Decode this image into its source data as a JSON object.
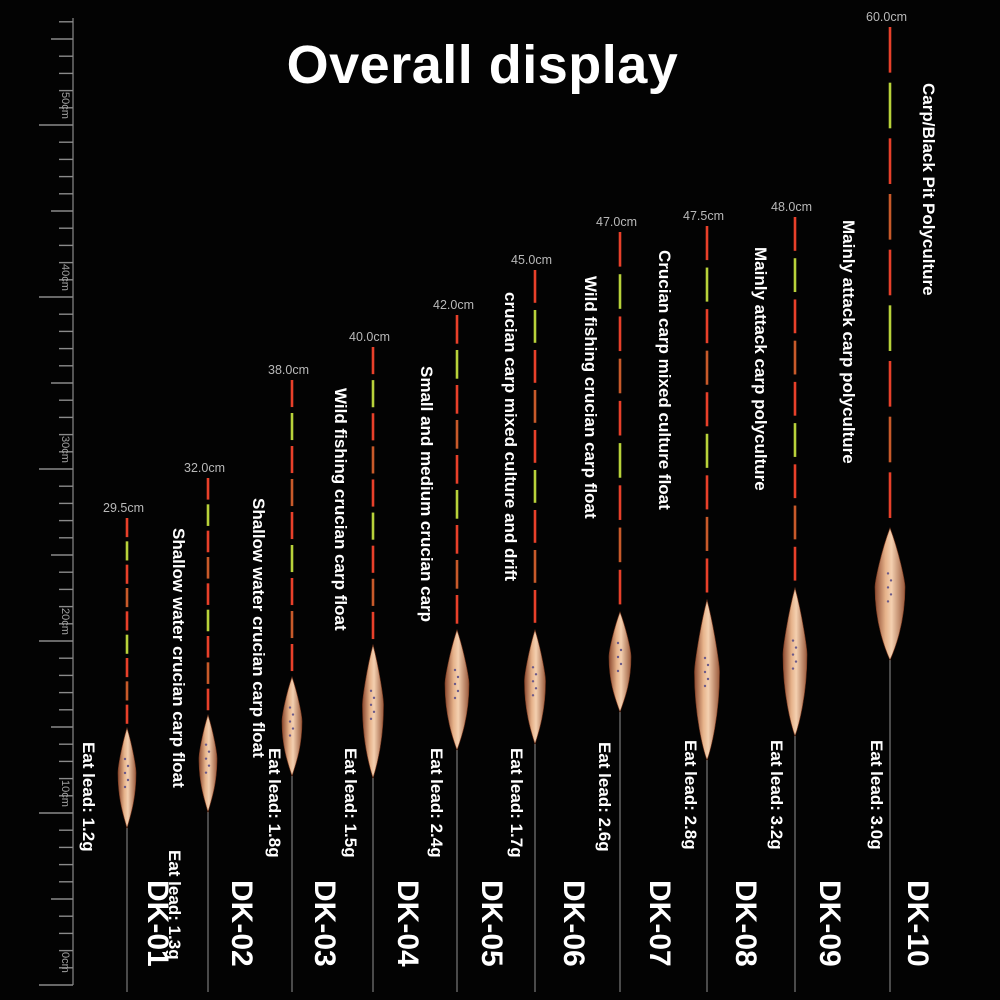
{
  "title": "Overall display",
  "ruler": {
    "labels": [
      "0cm",
      "10cm",
      "20cm",
      "30cm",
      "40cm",
      "50cm"
    ]
  },
  "floats": [
    {
      "model": "DK-01",
      "length": "29.5cm",
      "lead": "Eat lead: 1.2g",
      "description": "Shallow water crucian carp float"
    },
    {
      "model": "DK-02",
      "length": "32.0cm",
      "lead": "Eat lead: 1.3g",
      "description": "Shallow water crucian carp float"
    },
    {
      "model": "DK-03",
      "length": "38.0cm",
      "lead": "Eat lead: 1.8g",
      "description": "Wild fishing crucian carp float"
    },
    {
      "model": "DK-04",
      "length": "40.0cm",
      "lead": "Eat lead: 1.5g",
      "description": "Small and medium crucian carp"
    },
    {
      "model": "DK-05",
      "length": "42.0cm",
      "lead": "Eat lead: 2.4g",
      "description": "crucian carp mixed culture and drift"
    },
    {
      "model": "DK-06",
      "length": "45.0cm",
      "lead": "Eat lead: 1.7g",
      "description": "Wild fishing crucian carp float"
    },
    {
      "model": "DK-07",
      "length": "47.0cm",
      "lead": "Eat lead: 2.6g",
      "description": "Crucian carp mixed culture float"
    },
    {
      "model": "DK-08",
      "length": "47.5cm",
      "lead": "Eat lead: 2.8g",
      "description": "Mainly attack carp polyculture"
    },
    {
      "model": "DK-09",
      "length": "48.0cm",
      "lead": "Eat lead: 3.2g",
      "description": "Mainly attack carp polyculture"
    },
    {
      "model": "DK-10",
      "length": "60.0cm",
      "lead": "Eat lead: 3.0g",
      "description": "Carp/Black Pit Polyculture"
    }
  ],
  "colors": {
    "background": "#030303",
    "ruler": "#8a8a8a",
    "text": "#ffffff",
    "tip_red": "#e8402a",
    "tip_yellow": "#b8d23a",
    "body": "#d9a27a",
    "stem": "#4a4a4a"
  }
}
